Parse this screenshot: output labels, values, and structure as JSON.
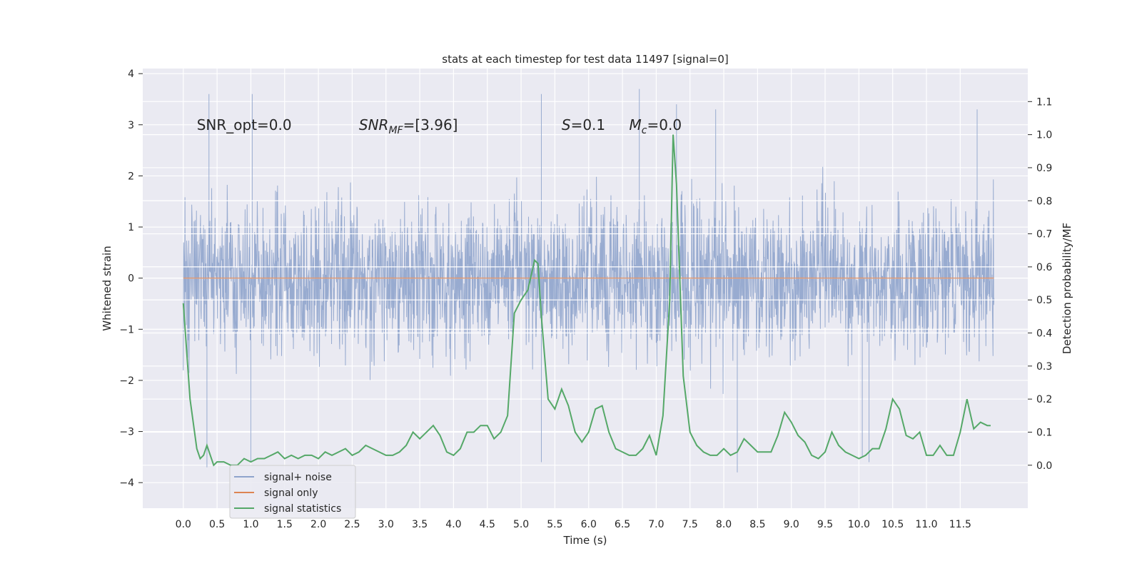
{
  "chart_data": {
    "type": "line",
    "title": "stats at each timestep for test data 11497 [signal=0]",
    "xlabel": "Time (s)",
    "ylabel_left": "Whitened strain",
    "ylabel_right": "Detection probability/MF",
    "xlim": [
      -0.6,
      12.5
    ],
    "ylim_left": [
      -4.5,
      4.1
    ],
    "ylim_right": [
      -0.13,
      1.2
    ],
    "x_ticks": [
      0.0,
      0.5,
      1.0,
      1.5,
      2.0,
      2.5,
      3.0,
      3.5,
      4.0,
      4.5,
      5.0,
      5.5,
      6.0,
      6.5,
      7.0,
      7.5,
      8.0,
      8.5,
      9.0,
      9.5,
      10.0,
      10.5,
      11.0,
      11.5
    ],
    "x_tick_labels": [
      "0.0",
      "0.5",
      "1.0",
      "1.5",
      "2.0",
      "2.5",
      "3.0",
      "3.5",
      "4.0",
      "4.5",
      "5.0",
      "5.5",
      "6.0",
      "6.5",
      "7.0",
      "7.5",
      "8.0",
      "8.5",
      "9.0",
      "9.5",
      "10.0",
      "10.5",
      "11.0",
      "11.5"
    ],
    "y_left_ticks": [
      4,
      3,
      2,
      1,
      0,
      -1,
      -2,
      -3,
      -4
    ],
    "y_left_tick_labels": [
      "4",
      "3",
      "2",
      "1",
      "0",
      "−1",
      "−2",
      "−3",
      "−4"
    ],
    "y_right_ticks": [
      0.0,
      0.1,
      0.2,
      0.3,
      0.4,
      0.5,
      0.6,
      0.7,
      0.8,
      0.9,
      1.0,
      1.1
    ],
    "y_right_tick_labels": [
      "0.0",
      "0.1",
      "0.2",
      "0.3",
      "0.4",
      "0.5",
      "0.6",
      "0.7",
      "0.8",
      "0.9",
      "1.0",
      "1.1"
    ],
    "grid": true,
    "legend_placement": "lower-left",
    "annotations": [
      {
        "text": "SNR_opt=0.0",
        "x": 0.2,
        "y": 3.0
      },
      {
        "text": "SNR_MF=[3.96]",
        "x": 2.6,
        "y": 3.0
      },
      {
        "text": "S=0.1",
        "x": 5.6,
        "y": 3.0
      },
      {
        "text": "M_c=0.0",
        "x": 6.6,
        "y": 3.0
      }
    ],
    "series": [
      {
        "name": "signal+ noise",
        "axis": "left",
        "color": "#8fa4cc",
        "x_range": [
          0.0,
          12.0
        ],
        "envelope_extremes_approx": [
          -3.7,
          3.6
        ],
        "notable_peaks_x_y": [
          [
            0.38,
            3.6
          ],
          [
            1.02,
            3.6
          ],
          [
            5.3,
            3.6
          ],
          [
            6.75,
            3.7
          ],
          [
            7.3,
            3.4
          ],
          [
            7.88,
            3.3
          ],
          [
            11.75,
            3.3
          ]
        ],
        "notable_troughs_x_y": [
          [
            0.35,
            -3.7
          ],
          [
            1.0,
            -3.6
          ],
          [
            5.3,
            -3.6
          ],
          [
            8.2,
            -3.8
          ],
          [
            10.15,
            -3.6
          ],
          [
            10.05,
            -3.5
          ]
        ]
      },
      {
        "name": "signal only",
        "axis": "left",
        "color": "#dd8452",
        "x": [
          0.0,
          12.0
        ],
        "y": [
          0.0,
          0.0
        ]
      },
      {
        "name": "signal statistics",
        "axis": "right",
        "color": "#55a868",
        "x": [
          0.0,
          0.1,
          0.2,
          0.25,
          0.3,
          0.35,
          0.4,
          0.45,
          0.5,
          0.6,
          0.7,
          0.8,
          0.9,
          1.0,
          1.1,
          1.2,
          1.3,
          1.4,
          1.5,
          1.6,
          1.7,
          1.8,
          1.9,
          2.0,
          2.1,
          2.2,
          2.3,
          2.4,
          2.5,
          2.6,
          2.7,
          2.8,
          2.9,
          3.0,
          3.1,
          3.2,
          3.3,
          3.4,
          3.5,
          3.6,
          3.7,
          3.8,
          3.9,
          4.0,
          4.1,
          4.2,
          4.3,
          4.4,
          4.5,
          4.6,
          4.7,
          4.8,
          4.9,
          5.0,
          5.1,
          5.2,
          5.25,
          5.3,
          5.4,
          5.5,
          5.6,
          5.7,
          5.8,
          5.9,
          6.0,
          6.1,
          6.2,
          6.3,
          6.4,
          6.5,
          6.6,
          6.7,
          6.8,
          6.9,
          7.0,
          7.1,
          7.2,
          7.25,
          7.3,
          7.4,
          7.5,
          7.6,
          7.7,
          7.8,
          7.9,
          8.0,
          8.1,
          8.2,
          8.3,
          8.4,
          8.5,
          8.6,
          8.7,
          8.8,
          8.9,
          9.0,
          9.1,
          9.2,
          9.3,
          9.4,
          9.5,
          9.6,
          9.7,
          9.8,
          9.9,
          10.0,
          10.1,
          10.2,
          10.3,
          10.4,
          10.5,
          10.6,
          10.7,
          10.8,
          10.9,
          11.0,
          11.1,
          11.2,
          11.3,
          11.4,
          11.5,
          11.6,
          11.7,
          11.8,
          11.9,
          11.95
        ],
        "y": [
          0.49,
          0.2,
          0.05,
          0.02,
          0.03,
          0.06,
          0.03,
          0.0,
          0.01,
          0.01,
          0.0,
          0.0,
          0.02,
          0.01,
          0.02,
          0.02,
          0.03,
          0.04,
          0.02,
          0.03,
          0.02,
          0.03,
          0.03,
          0.02,
          0.04,
          0.03,
          0.04,
          0.05,
          0.03,
          0.04,
          0.06,
          0.05,
          0.04,
          0.03,
          0.03,
          0.04,
          0.06,
          0.1,
          0.08,
          0.1,
          0.12,
          0.09,
          0.04,
          0.03,
          0.05,
          0.1,
          0.1,
          0.12,
          0.12,
          0.08,
          0.1,
          0.15,
          0.46,
          0.5,
          0.53,
          0.62,
          0.61,
          0.45,
          0.2,
          0.17,
          0.23,
          0.18,
          0.1,
          0.07,
          0.1,
          0.17,
          0.18,
          0.1,
          0.05,
          0.04,
          0.03,
          0.03,
          0.05,
          0.09,
          0.03,
          0.15,
          0.5,
          1.0,
          0.85,
          0.27,
          0.1,
          0.06,
          0.04,
          0.03,
          0.03,
          0.05,
          0.03,
          0.04,
          0.08,
          0.06,
          0.04,
          0.04,
          0.04,
          0.09,
          0.16,
          0.13,
          0.09,
          0.07,
          0.03,
          0.02,
          0.04,
          0.1,
          0.06,
          0.04,
          0.03,
          0.02,
          0.03,
          0.05,
          0.05,
          0.11,
          0.2,
          0.17,
          0.09,
          0.08,
          0.1,
          0.03,
          0.03,
          0.06,
          0.03,
          0.03,
          0.1,
          0.2,
          0.11,
          0.13,
          0.12,
          0.12
        ]
      }
    ]
  }
}
